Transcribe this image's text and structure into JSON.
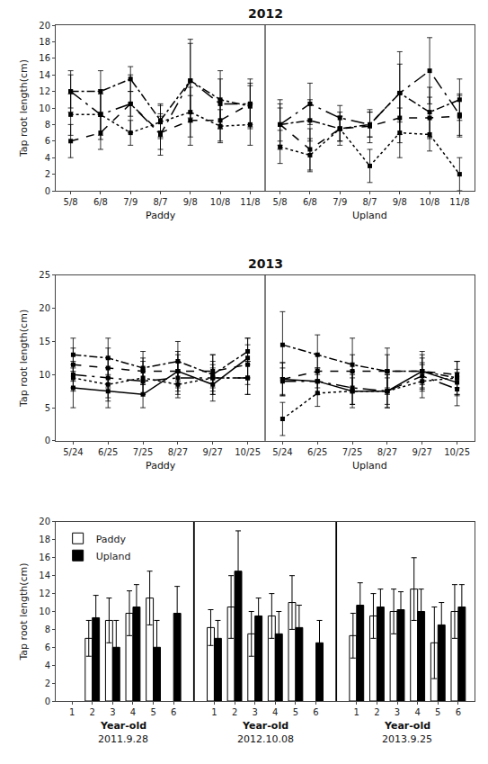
{
  "chart_data": [
    {
      "type": "line",
      "title": "2012",
      "y_label": "Tap root length(cm)",
      "category_groups": [
        {
          "label": "Paddy",
          "categories": [
            "5/8",
            "6/8",
            "7/9",
            "8/7",
            "9/8",
            "10/8",
            "11/8"
          ]
        },
        {
          "label": "Upland",
          "categories": [
            "5/8",
            "6/8",
            "7/9",
            "8/7",
            "9/8",
            "10/8",
            "11/8"
          ]
        }
      ],
      "series": [
        {
          "color": "black",
          "line_style": "dash",
          "marker": "square",
          "values": [
            6.0,
            7.0,
            10.5,
            7.0,
            8.5,
            8.5,
            10.5,
            null,
            null,
            null,
            null,
            null,
            null,
            null
          ],
          "errors": [
            2.0,
            2.0,
            1.5,
            2.0,
            3.0,
            2.5,
            2.5,
            null,
            null,
            null,
            null,
            null,
            null,
            null
          ]
        },
        {
          "color": "black",
          "line_style": "dashdot",
          "marker": "square",
          "values": [
            12.0,
            12.0,
            13.5,
            8.5,
            13.3,
            11.0,
            10.2,
            null,
            null,
            null,
            null,
            null,
            null,
            null
          ],
          "errors": [
            2.5,
            2.5,
            1.5,
            2.0,
            5.0,
            3.5,
            2.5,
            null,
            null,
            null,
            null,
            null,
            null,
            null
          ]
        },
        {
          "color": "black",
          "line_style": "longdashdot",
          "marker": "square",
          "values": [
            12.0,
            9.2,
            10.5,
            6.8,
            13.3,
            10.5,
            10.5,
            null,
            null,
            null,
            null,
            null,
            null,
            null
          ],
          "errors": [
            2.0,
            3.0,
            3.5,
            2.5,
            4.5,
            3.0,
            3.0,
            null,
            null,
            null,
            null,
            null,
            null,
            null
          ]
        },
        {
          "color": "black",
          "line_style": "dot",
          "marker": "square",
          "values": [
            9.2,
            9.2,
            7.0,
            8.3,
            9.5,
            7.8,
            8.0,
            null,
            null,
            null,
            null,
            null,
            null,
            null
          ],
          "errors": [
            2.5,
            2.5,
            1.5,
            2.0,
            3.0,
            2.0,
            2.5,
            null,
            null,
            null,
            null,
            null,
            null,
            null
          ]
        },
        {
          "color": "black",
          "line_style": "dash",
          "marker": "square",
          "values": [
            null,
            null,
            null,
            null,
            null,
            null,
            null,
            8.0,
            5.0,
            7.5,
            7.8,
            8.8,
            8.8,
            9.0
          ],
          "errors": [
            null,
            null,
            null,
            null,
            null,
            null,
            null,
            2.0,
            2.5,
            1.5,
            2.0,
            3.0,
            2.5,
            2.5
          ]
        },
        {
          "color": "black",
          "line_style": "dashdot",
          "marker": "square",
          "values": [
            null,
            null,
            null,
            null,
            null,
            null,
            null,
            8.0,
            8.5,
            7.5,
            8.0,
            11.8,
            9.5,
            11.0
          ],
          "errors": [
            null,
            null,
            null,
            null,
            null,
            null,
            null,
            3.0,
            2.5,
            1.5,
            1.5,
            5.0,
            3.0,
            2.5
          ]
        },
        {
          "color": "black",
          "line_style": "longdashdot",
          "marker": "square",
          "values": [
            null,
            null,
            null,
            null,
            null,
            null,
            null,
            8.0,
            10.5,
            8.8,
            8.0,
            11.8,
            14.5,
            9.2
          ],
          "errors": [
            null,
            null,
            null,
            null,
            null,
            null,
            null,
            2.5,
            2.5,
            1.5,
            1.5,
            3.5,
            4.0,
            2.5
          ]
        },
        {
          "color": "black",
          "line_style": "dot",
          "marker": "square",
          "values": [
            null,
            null,
            null,
            null,
            null,
            null,
            null,
            5.3,
            4.3,
            7.5,
            3.0,
            7.0,
            6.8,
            2.0
          ],
          "errors": [
            null,
            null,
            null,
            null,
            null,
            null,
            null,
            2.0,
            2.0,
            2.0,
            2.0,
            3.0,
            2.0,
            2.0
          ]
        }
      ],
      "ylim": [
        0,
        20
      ],
      "yticks": [
        0,
        2,
        4,
        6,
        8,
        10,
        12,
        14,
        16,
        18,
        20
      ],
      "grid": false
    },
    {
      "type": "line",
      "title": "2013",
      "y_label": "Tap root length(cm)",
      "category_groups": [
        {
          "label": "Paddy",
          "categories": [
            "5/24",
            "6/25",
            "7/25",
            "8/27",
            "9/27",
            "10/25"
          ]
        },
        {
          "label": "Upland",
          "categories": [
            "5/24",
            "6/25",
            "7/25",
            "8/27",
            "9/27",
            "10/25"
          ]
        }
      ],
      "series": [
        {
          "color": "black",
          "line_style": "solid",
          "marker": "square",
          "values": [
            8.0,
            7.5,
            7.0,
            10.5,
            8.5,
            12.5,
            null,
            null,
            null,
            null,
            null,
            null
          ],
          "errors": [
            3.0,
            2.5,
            2.0,
            2.5,
            2.5,
            3.0,
            null,
            null,
            null,
            null,
            null,
            null
          ]
        },
        {
          "color": "black",
          "line_style": "dash",
          "marker": "square",
          "values": [
            11.5,
            11.0,
            10.5,
            10.5,
            10.5,
            11.5,
            null,
            null,
            null,
            null,
            null,
            null
          ],
          "errors": [
            2.5,
            3.0,
            2.0,
            3.0,
            2.5,
            3.0,
            null,
            null,
            null,
            null,
            null,
            null
          ]
        },
        {
          "color": "black",
          "line_style": "dashdot",
          "marker": "square",
          "values": [
            13.0,
            12.5,
            11.0,
            12.0,
            10.0,
            13.5,
            null,
            null,
            null,
            null,
            null,
            null
          ],
          "errors": [
            2.5,
            3.0,
            2.5,
            3.0,
            3.0,
            2.0,
            null,
            null,
            null,
            null,
            null,
            null
          ]
        },
        {
          "color": "black",
          "line_style": "longdashdot",
          "marker": "square",
          "values": [
            10.0,
            9.5,
            9.0,
            9.5,
            9.5,
            9.5,
            null,
            null,
            null,
            null,
            null,
            null
          ],
          "errors": [
            2.0,
            3.0,
            2.0,
            2.5,
            2.5,
            2.5,
            null,
            null,
            null,
            null,
            null,
            null
          ]
        },
        {
          "color": "black",
          "line_style": "dot",
          "marker": "square",
          "values": [
            9.5,
            8.5,
            9.5,
            8.5,
            9.5,
            9.5,
            null,
            null,
            null,
            null,
            null,
            null
          ],
          "errors": [
            2.0,
            2.5,
            2.5,
            2.0,
            2.0,
            2.5,
            null,
            null,
            null,
            null,
            null,
            null
          ]
        },
        {
          "color": "black",
          "line_style": "solid",
          "marker": "square",
          "values": [
            null,
            null,
            null,
            null,
            null,
            null,
            9.3,
            9.0,
            7.5,
            7.5,
            10.5,
            8.8
          ],
          "errors": [
            null,
            null,
            null,
            null,
            null,
            null,
            2.5,
            2.0,
            2.5,
            2.5,
            2.5,
            2.0
          ]
        },
        {
          "color": "black",
          "line_style": "dash",
          "marker": "square",
          "values": [
            null,
            null,
            null,
            null,
            null,
            null,
            9.3,
            10.5,
            10.5,
            10.5,
            10.5,
            10.0
          ],
          "errors": [
            null,
            null,
            null,
            null,
            null,
            null,
            2.5,
            2.5,
            2.5,
            2.5,
            2.0,
            2.0
          ]
        },
        {
          "color": "black",
          "line_style": "dashdot",
          "marker": "square",
          "values": [
            null,
            null,
            null,
            null,
            null,
            null,
            14.5,
            13.0,
            11.5,
            10.5,
            10.5,
            9.5
          ],
          "errors": [
            null,
            null,
            null,
            null,
            null,
            null,
            5.0,
            3.0,
            4.0,
            3.5,
            3.0,
            2.5
          ]
        },
        {
          "color": "black",
          "line_style": "longdashdot",
          "marker": "square",
          "values": [
            null,
            null,
            null,
            null,
            null,
            null,
            9.0,
            9.0,
            8.0,
            7.5,
            9.8,
            7.8
          ],
          "errors": [
            null,
            null,
            null,
            null,
            null,
            null,
            2.0,
            2.0,
            2.5,
            2.0,
            2.0,
            2.5
          ]
        },
        {
          "color": "black",
          "line_style": "dot",
          "marker": "square",
          "values": [
            null,
            null,
            null,
            null,
            null,
            null,
            3.3,
            7.2,
            7.5,
            7.5,
            9.0,
            9.5
          ],
          "errors": [
            null,
            null,
            null,
            null,
            null,
            null,
            2.5,
            2.0,
            2.0,
            2.5,
            2.5,
            2.5
          ]
        }
      ],
      "ylim": [
        0,
        25
      ],
      "yticks": [
        0,
        5,
        10,
        15,
        20,
        25
      ],
      "grid": false
    },
    {
      "type": "bar",
      "y_label": "Tap root length(cm)",
      "category_groups": [
        {
          "label": "Year-old",
          "sublabel": "2011.9.28",
          "categories": [
            "1",
            "2",
            "3",
            "4",
            "5",
            "6"
          ]
        },
        {
          "label": "Year-old",
          "sublabel": "2012.10.08",
          "categories": [
            "1",
            "2",
            "3",
            "4",
            "5",
            "6"
          ]
        },
        {
          "label": "Year-old",
          "sublabel": "2013.9.25",
          "categories": [
            "1",
            "2",
            "3",
            "4",
            "5",
            "6"
          ]
        }
      ],
      "series": [
        {
          "name": "Paddy",
          "color": "white",
          "values": [
            null,
            7.0,
            9.0,
            9.8,
            11.5,
            null,
            8.2,
            10.5,
            7.5,
            9.5,
            11.0,
            null,
            7.3,
            9.5,
            10.0,
            12.5,
            6.5,
            10.0
          ],
          "errors": [
            null,
            2.0,
            2.5,
            2.5,
            3.0,
            null,
            2.0,
            3.5,
            2.5,
            2.5,
            3.0,
            null,
            2.5,
            2.5,
            2.5,
            3.5,
            4.0,
            3.0
          ]
        },
        {
          "name": "Upland",
          "color": "black",
          "values": [
            null,
            9.3,
            6.0,
            10.5,
            6.0,
            9.8,
            7.0,
            14.5,
            9.5,
            7.5,
            8.2,
            6.5,
            10.7,
            10.5,
            10.2,
            10.0,
            8.5,
            10.5
          ],
          "errors": [
            null,
            2.5,
            3.0,
            2.5,
            3.0,
            3.0,
            2.0,
            4.5,
            2.0,
            2.5,
            2.5,
            2.5,
            2.5,
            2.0,
            2.0,
            2.5,
            2.5,
            2.5
          ]
        }
      ],
      "ylim": [
        0,
        20
      ],
      "yticks": [
        0,
        2,
        4,
        6,
        8,
        10,
        12,
        14,
        16,
        18,
        20
      ],
      "grid": false,
      "legend": "upper left"
    }
  ]
}
